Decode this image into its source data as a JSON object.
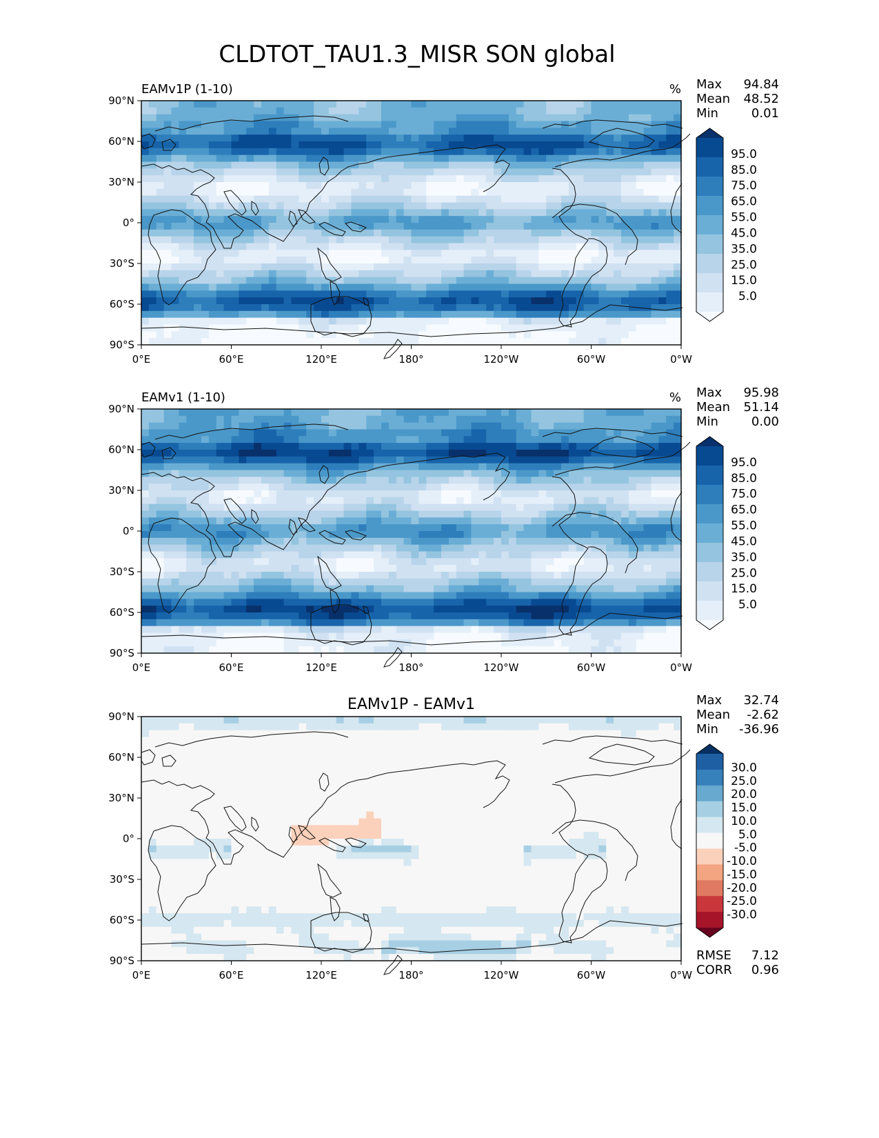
{
  "chart_data": {
    "type": "heatmap",
    "title": "CLDTOT_TAU1.3_MISR SON global",
    "panels": [
      {
        "id": "test",
        "left_title": "EAMv1P (1-10)",
        "center_title": "",
        "units": "%",
        "stats": [
          {
            "label": "Max",
            "value": "94.84"
          },
          {
            "label": "Mean",
            "value": "48.52"
          },
          {
            "label": "Min",
            "value": "0.01"
          }
        ],
        "colorbar": {
          "levels": [
            "95.0",
            "85.0",
            "75.0",
            "65.0",
            "55.0",
            "45.0",
            "35.0",
            "25.0",
            "15.0",
            "5.0"
          ],
          "colors": [
            "#f7fbff",
            "#e4eff9",
            "#d0e1f2",
            "#b7d4ea",
            "#94c4df",
            "#6aaed6",
            "#4a98c9",
            "#2e7ebc",
            "#1764ab",
            "#084a91",
            "#08306b"
          ]
        }
      },
      {
        "id": "ref",
        "left_title": "EAMv1 (1-10)",
        "center_title": "",
        "units": "%",
        "stats": [
          {
            "label": "Max",
            "value": "95.98"
          },
          {
            "label": "Mean",
            "value": "51.14"
          },
          {
            "label": "Min",
            "value": "0.00"
          }
        ],
        "colorbar": {
          "levels": [
            "95.0",
            "85.0",
            "75.0",
            "65.0",
            "55.0",
            "45.0",
            "35.0",
            "25.0",
            "15.0",
            "5.0"
          ],
          "colors": [
            "#f7fbff",
            "#e4eff9",
            "#d0e1f2",
            "#b7d4ea",
            "#94c4df",
            "#6aaed6",
            "#4a98c9",
            "#2e7ebc",
            "#1764ab",
            "#084a91",
            "#08306b"
          ]
        }
      },
      {
        "id": "diff",
        "left_title": "",
        "center_title": "EAMv1P - EAMv1",
        "units": "",
        "stats": [
          {
            "label": "Max",
            "value": "32.74"
          },
          {
            "label": "Mean",
            "value": "-2.62"
          },
          {
            "label": "Min",
            "value": "-36.96"
          }
        ],
        "extra_stats": [
          {
            "label": "RMSE",
            "value": "7.12"
          },
          {
            "label": "CORR",
            "value": "0.96"
          }
        ],
        "colorbar": {
          "levels": [
            "30.0",
            "25.0",
            "20.0",
            "15.0",
            "10.0",
            "5.0",
            "-5.0",
            "-10.0",
            "-15.0",
            "-20.0",
            "-25.0",
            "-30.0"
          ],
          "colors": [
            "#67001f",
            "#a51429",
            "#c9373b",
            "#e07a62",
            "#f3a481",
            "#fbd1bb",
            "#f7f7f7",
            "#d5e7f0",
            "#a7cfe4",
            "#67a9cf",
            "#3680bb",
            "#1d5fa2",
            "#053061"
          ]
        }
      }
    ],
    "x_ticks": [
      "0°E",
      "60°E",
      "120°E",
      "180°",
      "120°W",
      "60°W",
      "0°W"
    ],
    "y_ticks": [
      "90°N",
      "60°N",
      "30°N",
      "0°",
      "30°S",
      "60°S",
      "90°S"
    ],
    "xlim": [
      0,
      360
    ],
    "ylim": [
      -90,
      90
    ],
    "grid": false
  }
}
